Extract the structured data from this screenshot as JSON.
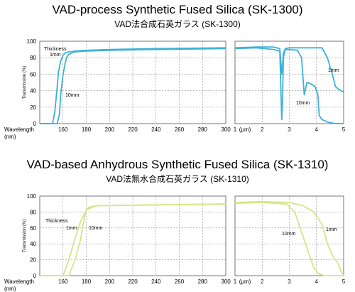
{
  "chart_data": [
    {
      "type": "line",
      "title": "VAD-process Synthetic Fused Silica (SK-1300)",
      "subtitle": "VAD法合成石英ガラス (SK-1300)",
      "ylabel": "Transmission (%)",
      "xlabel": "Wavelength (nm)",
      "ylim": [
        0,
        100
      ],
      "yticks": [
        "0",
        "20",
        "40",
        "60",
        "80",
        "100"
      ],
      "xlabel_parts": [
        "Wavelength",
        "(nm)"
      ],
      "left_panel": {
        "xlim": [
          140,
          300
        ],
        "xticks": [
          "160",
          "180",
          "200",
          "220",
          "240",
          "260",
          "280",
          "300"
        ],
        "series": [
          {
            "name": "1mm",
            "x": [
              140,
              151,
              153,
              155,
              156,
              158,
              160,
              162,
              165,
              170,
              180,
              200,
              240,
              300
            ],
            "y": [
              0,
              0,
              15,
              45,
              62,
              76,
              83,
              86,
              87,
              88,
              89,
              90,
              91,
              92
            ]
          },
          {
            "name": "10mm",
            "x": [
              140,
              155,
              157,
              158,
              160,
              162,
              163,
              165,
              170,
              180,
              200,
              240,
              300
            ],
            "y": [
              0,
              0,
              12,
              35,
              60,
              74,
              80,
              84,
              87,
              88,
              89,
              90,
              91
            ]
          }
        ]
      },
      "right_panel": {
        "xlim": [
          1,
          5
        ],
        "unit": "(μm)",
        "xticks": [
          "1",
          "2",
          "3",
          "4",
          "5"
        ],
        "series": [
          {
            "name": "1mm",
            "x": [
              1,
              1.8,
              2.4,
              2.65,
              2.72,
              2.78,
              2.85,
              3.0,
              3.3,
              3.6,
              4.2,
              4.4,
              4.6,
              4.7,
              4.8,
              4.9,
              5.0
            ],
            "y": [
              92,
              93,
              93,
              91,
              60,
              85,
              91,
              92,
              92,
              92,
              92,
              80,
              58,
              45,
              42,
              40,
              38
            ]
          },
          {
            "name": "10mm",
            "x": [
              1,
              1.8,
              2.4,
              2.65,
              2.72,
              2.75,
              2.78,
              2.85,
              3.0,
              3.3,
              3.45,
              3.55,
              3.65,
              3.8,
              3.95,
              4.05,
              4.1,
              4.2,
              4.4,
              4.7,
              4.8,
              5.0
            ],
            "y": [
              91,
              92,
              90,
              88,
              5,
              25,
              80,
              90,
              90,
              89,
              80,
              35,
              50,
              48,
              45,
              35,
              10,
              5,
              2,
              0,
              0,
              0
            ]
          }
        ]
      },
      "annotations": {
        "thickness": "Thickness",
        "one_mm": "1mm",
        "ten_mm": "10mm",
        "right_one_mm": "1mm",
        "right_ten_mm": "10mm"
      },
      "line_color": "#3fb1d6"
    },
    {
      "type": "line",
      "title": "VAD-based Anhydrous Synthetic Fused Silica (SK-1310)",
      "subtitle": "VAD法無水合成石英ガラス (SK-1310)",
      "ylabel": "Transmission (%)",
      "xlabel": "Wavelength (nm)",
      "ylim": [
        0,
        100
      ],
      "yticks": [
        "0",
        "20",
        "40",
        "60",
        "80",
        "100"
      ],
      "xlabel_parts": [
        "Wavelength",
        "(nm)"
      ],
      "left_panel": {
        "xlim": [
          140,
          300
        ],
        "xticks": [
          "160",
          "180",
          "200",
          "220",
          "240",
          "260",
          "280",
          "300"
        ],
        "series": [
          {
            "name": "1mm",
            "x": [
              140,
              160,
              165,
              170,
              175,
              180,
              185,
              190,
              200,
              240,
              300
            ],
            "y": [
              0,
              0,
              20,
              45,
              68,
              82,
              86,
              88,
              88,
              89,
              90
            ]
          },
          {
            "name": "10mm",
            "x": [
              140,
              165,
              170,
              175,
              178,
              180,
              182,
              185,
              190,
              200,
              240,
              300
            ],
            "y": [
              0,
              0,
              18,
              45,
              70,
              82,
              86,
              87,
              88,
              88,
              89,
              90
            ]
          }
        ]
      },
      "right_panel": {
        "xlim": [
          1,
          5
        ],
        "unit": "(μm)",
        "xticks": [
          "1",
          "2",
          "3",
          "4",
          "5"
        ],
        "series": [
          {
            "name": "1mm",
            "x": [
              1,
              2.0,
              3.0,
              3.5,
              3.9,
              4.2,
              4.4,
              4.6,
              4.8,
              4.9,
              5.0
            ],
            "y": [
              92,
              93,
              92,
              88,
              80,
              65,
              40,
              25,
              15,
              5,
              0
            ]
          },
          {
            "name": "10mm",
            "x": [
              1,
              2.0,
              2.9,
              3.2,
              3.4,
              3.6,
              3.9,
              4.1,
              4.3,
              5.0
            ],
            "y": [
              91,
              92,
              90,
              80,
              60,
              40,
              10,
              2,
              0,
              0
            ]
          }
        ]
      },
      "annotations": {
        "thickness": "Thickness",
        "one_mm": "1mm",
        "ten_mm": "10mm",
        "right_one_mm": "1mm",
        "right_ten_mm": "10mm"
      },
      "line_color": "#d8e48a"
    }
  ]
}
